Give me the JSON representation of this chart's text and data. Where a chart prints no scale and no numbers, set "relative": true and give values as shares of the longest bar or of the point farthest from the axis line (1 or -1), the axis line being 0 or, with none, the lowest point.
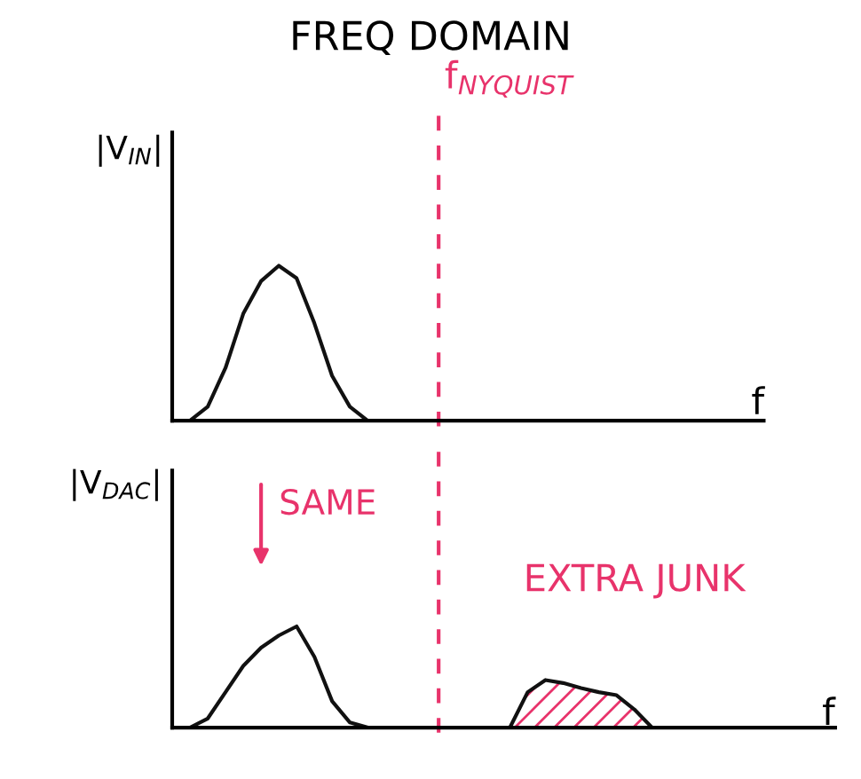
{
  "chart_data": [
    {
      "type": "line",
      "title": "FREQ DOMAIN",
      "ylabel": "|V$_{IN}$|",
      "xlabel": "f",
      "relative": true,
      "categories": [
        null,
        null,
        null,
        null,
        null,
        null,
        null,
        null,
        null,
        null,
        null,
        null,
        null,
        null,
        null,
        null,
        null,
        null,
        null,
        null,
        null,
        null,
        null,
        null,
        null,
        null,
        null,
        null,
        null,
        null,
        null,
        null,
        null,
        null
      ],
      "series": [
        {
          "color": "#111111",
          "values": [
            null,
            0,
            0.09,
            0.34,
            0.69,
            0.9,
            1,
            0.92,
            0.63,
            0.29,
            0.09,
            0,
            null,
            null,
            null,
            null,
            null,
            null,
            null,
            null,
            null,
            null,
            null,
            null,
            null,
            null,
            null,
            null,
            null,
            null,
            null,
            null,
            null,
            null
          ]
        }
      ],
      "annotations": [
        "f$_{NYQUIST}$"
      ]
    },
    {
      "type": "line",
      "ylabel": "|V$_{DAC}$|",
      "xlabel": "f",
      "relative": true,
      "categories": [
        null,
        null,
        null,
        null,
        null,
        null,
        null,
        null,
        null,
        null,
        null,
        null,
        null,
        null,
        null,
        null,
        null,
        null,
        null,
        null,
        null,
        null,
        null,
        null,
        null,
        null,
        null,
        null,
        null,
        null,
        null,
        null,
        null,
        null,
        null,
        null,
        null,
        null
      ],
      "series": [
        {
          "color": "#111111",
          "values": [
            null,
            0,
            0.09,
            0.35,
            0.61,
            0.79,
            0.91,
            1,
            0.7,
            0.26,
            0.05,
            0,
            null,
            null,
            null,
            null,
            null,
            null,
            null,
            null,
            null,
            null,
            null,
            null,
            null,
            null,
            null,
            null,
            null,
            null,
            null,
            null,
            null,
            null,
            null,
            null,
            null,
            null
          ]
        },
        {
          "type": "area",
          "color": "#e8336b",
          "values": [
            null,
            null,
            null,
            null,
            null,
            null,
            null,
            null,
            null,
            null,
            null,
            null,
            null,
            null,
            null,
            null,
            null,
            null,
            null,
            0,
            0.35,
            0.47,
            0.44,
            0.39,
            0.35,
            0.32,
            0.18,
            0,
            null,
            null,
            null,
            null,
            null,
            null,
            null,
            null,
            null,
            null
          ]
        }
      ],
      "annotations": [
        "SAME",
        "EXTRA JUNK"
      ]
    }
  ]
}
